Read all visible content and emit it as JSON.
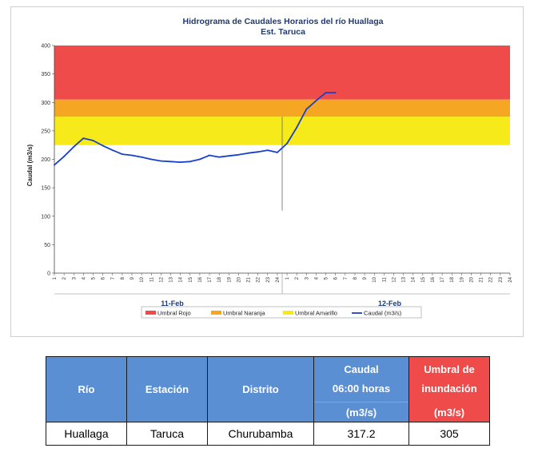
{
  "chart_data": {
    "type": "line",
    "title": "Hidrograma de Caudales Horarios del río Huallaga",
    "subtitle": "Est. Taruca",
    "ylabel": "Caudal (m3/s)",
    "ylim": [
      0,
      400
    ],
    "yticks": [
      0,
      50,
      100,
      150,
      200,
      250,
      300,
      350,
      400
    ],
    "x_hour_labels": [
      "1",
      "2",
      "3",
      "4",
      "5",
      "6",
      "7",
      "8",
      "9",
      "10",
      "11",
      "12",
      "13",
      "14",
      "15",
      "16",
      "17",
      "18",
      "19",
      "20",
      "21",
      "22",
      "23",
      "24",
      "1",
      "2",
      "3",
      "4",
      "5",
      "6",
      "7",
      "8",
      "9",
      "10",
      "11",
      "12",
      "13",
      "14",
      "15",
      "16",
      "17",
      "18",
      "19",
      "20",
      "21",
      "22",
      "23",
      "24"
    ],
    "day_labels": [
      "11-Feb",
      "12-Feb"
    ],
    "threshold_bands": [
      {
        "name": "Umbral Rojo",
        "from": 305,
        "to": 400,
        "color": "#ef4b4b"
      },
      {
        "name": "Umbral Naranja",
        "from": 275,
        "to": 305,
        "color": "#f5a623"
      },
      {
        "name": "Umbral Amarillo",
        "from": 225,
        "to": 275,
        "color": "#f7ea1a"
      }
    ],
    "series": [
      {
        "name": "Caudal (m3/s)",
        "color": "#1a3fcc",
        "x": [
          1,
          2,
          3,
          4,
          5,
          6,
          7,
          8,
          9,
          10,
          11,
          12,
          13,
          14,
          15,
          16,
          17,
          18,
          19,
          20,
          21,
          22,
          23,
          24,
          25,
          26,
          27,
          28,
          29,
          30
        ],
        "values": [
          190,
          205,
          222,
          237,
          233,
          224,
          216,
          209,
          207,
          204,
          200,
          197,
          196,
          195,
          196,
          200,
          207,
          204,
          206,
          208,
          211,
          213,
          216,
          212,
          228,
          256,
          288,
          303,
          317,
          317.2
        ]
      }
    ],
    "legend": {
      "placement": "bottom"
    },
    "grid": false
  },
  "table": {
    "headers": {
      "rio": "Río",
      "estacion": "Estación",
      "distrito": "Distrito",
      "caudal_line1": "Caudal",
      "caudal_line2": "06:00 horas",
      "caudal_unit": "(m3/s)",
      "umbral_line1": "Umbral de",
      "umbral_line2": "inundación",
      "umbral_unit": "(m3/s)"
    },
    "row": {
      "rio": "Huallaga",
      "estacion": "Taruca",
      "distrito": "Churubamba",
      "caudal": "317.2",
      "umbral": "305"
    }
  }
}
